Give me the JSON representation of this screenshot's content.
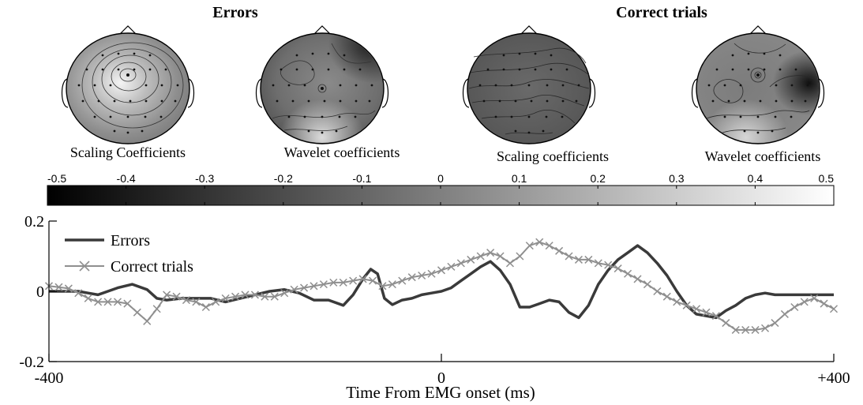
{
  "groups": [
    {
      "title": "Errors"
    },
    {
      "title": "Correct trials"
    }
  ],
  "maps": [
    {
      "label": "Scaling Coefficients",
      "group": "Errors"
    },
    {
      "label": "Wavelet coefficients",
      "group": "Errors"
    },
    {
      "label": "Scaling coefficients",
      "group": "Correct trials"
    },
    {
      "label": "Wavelet coefficients",
      "group": "Correct trials"
    }
  ],
  "colorbar": {
    "ticks": [
      "-0.5",
      "-0.4",
      "-0.3",
      "-0.2",
      "-0.1",
      "0",
      "0.1",
      "0.2",
      "0.3",
      "0.4",
      "0.5"
    ],
    "range": [
      -0.5,
      0.5
    ],
    "colormap": "grayscale (black to white)"
  },
  "chart_data": {
    "type": "line",
    "xlabel": "Time From EMG onset (ms)",
    "xlim": [
      -400,
      400
    ],
    "ylim": [
      -0.2,
      0.2
    ],
    "xticks": [
      "-400",
      "0",
      "+400"
    ],
    "yticks": [
      "0.2",
      "0",
      "-0.2"
    ],
    "legend_position": "top-left",
    "series": [
      {
        "name": "Errors",
        "color": "#3a3a3a",
        "marker": "none",
        "x": [
          -400,
          -385,
          -370,
          -360,
          -350,
          -340,
          -330,
          -315,
          -300,
          -290,
          -280,
          -265,
          -250,
          -235,
          -220,
          -205,
          -190,
          -175,
          -160,
          -145,
          -130,
          -115,
          -100,
          -90,
          -80,
          -72,
          -65,
          -58,
          -50,
          -40,
          -30,
          -20,
          -10,
          0,
          10,
          20,
          30,
          40,
          50,
          60,
          70,
          80,
          90,
          100,
          110,
          120,
          130,
          140,
          150,
          160,
          170,
          180,
          190,
          200,
          210,
          220,
          230,
          240,
          250,
          260,
          270,
          280,
          290,
          300,
          310,
          320,
          330,
          340,
          350,
          360,
          370,
          380,
          390,
          400
        ],
        "y": [
          0,
          0,
          0,
          -0.005,
          -0.01,
          0,
          0.01,
          0.02,
          0.005,
          -0.02,
          -0.025,
          -0.02,
          -0.02,
          -0.02,
          -0.03,
          -0.02,
          -0.01,
          0,
          0.005,
          -0.005,
          -0.025,
          -0.025,
          -0.04,
          -0.01,
          0.035,
          0.063,
          0.05,
          -0.02,
          -0.038,
          -0.025,
          -0.02,
          -0.01,
          -0.005,
          0,
          0.01,
          0.03,
          0.05,
          0.07,
          0.085,
          0.06,
          0.02,
          -0.045,
          -0.045,
          -0.035,
          -0.025,
          -0.03,
          -0.06,
          -0.075,
          -0.04,
          0.02,
          0.06,
          0.09,
          0.11,
          0.13,
          0.11,
          0.08,
          0.045,
          0,
          -0.04,
          -0.065,
          -0.07,
          -0.075,
          -0.055,
          -0.04,
          -0.02,
          -0.01,
          -0.005,
          -0.01,
          -0.01,
          -0.01,
          -0.01,
          -0.01,
          -0.01,
          -0.01
        ]
      },
      {
        "name": "Correct trials",
        "color": "#8f8f8f",
        "marker": "x",
        "x": [
          -400,
          -390,
          -380,
          -370,
          -360,
          -350,
          -340,
          -330,
          -320,
          -310,
          -300,
          -290,
          -280,
          -270,
          -260,
          -250,
          -240,
          -230,
          -220,
          -210,
          -200,
          -190,
          -180,
          -170,
          -160,
          -150,
          -140,
          -130,
          -120,
          -110,
          -100,
          -90,
          -80,
          -70,
          -60,
          -50,
          -40,
          -30,
          -20,
          -10,
          0,
          10,
          20,
          30,
          40,
          50,
          60,
          70,
          80,
          90,
          100,
          110,
          120,
          130,
          140,
          150,
          160,
          170,
          180,
          190,
          200,
          210,
          220,
          230,
          240,
          250,
          260,
          270,
          280,
          290,
          300,
          310,
          320,
          330,
          340,
          350,
          360,
          370,
          380,
          390,
          400
        ],
        "y": [
          0.015,
          0.012,
          0.008,
          -0.005,
          -0.02,
          -0.03,
          -0.03,
          -0.03,
          -0.035,
          -0.06,
          -0.085,
          -0.05,
          -0.01,
          -0.015,
          -0.025,
          -0.03,
          -0.045,
          -0.03,
          -0.02,
          -0.015,
          -0.01,
          -0.01,
          -0.015,
          -0.015,
          -0.005,
          0.005,
          0.01,
          0.015,
          0.02,
          0.025,
          0.025,
          0.03,
          0.035,
          0.03,
          0.015,
          0.02,
          0.03,
          0.04,
          0.045,
          0.05,
          0.06,
          0.07,
          0.08,
          0.09,
          0.1,
          0.11,
          0.1,
          0.08,
          0.1,
          0.13,
          0.14,
          0.13,
          0.115,
          0.1,
          0.09,
          0.09,
          0.08,
          0.075,
          0.065,
          0.05,
          0.035,
          0.02,
          0,
          -0.015,
          -0.03,
          -0.04,
          -0.05,
          -0.06,
          -0.07,
          -0.09,
          -0.11,
          -0.11,
          -0.11,
          -0.105,
          -0.09,
          -0.065,
          -0.045,
          -0.03,
          -0.02,
          -0.035,
          -0.05
        ]
      }
    ]
  }
}
